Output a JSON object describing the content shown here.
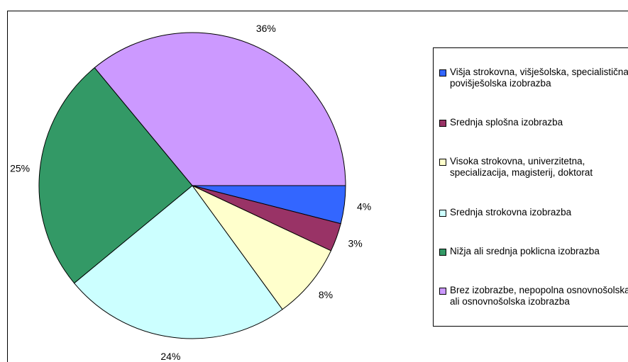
{
  "chart_data": {
    "type": "pie",
    "series": [
      {
        "name": "Višja strokovna, višješolska, specialistična povišješolska izobrazba",
        "color": "#3366ff",
        "values": [
          4
        ],
        "value_labels": [
          "4%"
        ]
      },
      {
        "name": "Srednja splošna izobrazba",
        "color": "#993366",
        "values": [
          3
        ],
        "value_labels": [
          "3%"
        ]
      },
      {
        "name": "Visoka strokovna, univerzitetna, specializacija, magisterij, doktorat",
        "color": "#ffffcc",
        "values": [
          8
        ],
        "value_labels": [
          "8%"
        ]
      },
      {
        "name": "Srednja strokovna izobrazba",
        "color": "#ccffff",
        "values": [
          24
        ],
        "value_labels": [
          "24%"
        ]
      },
      {
        "name": "Nižja ali srednja poklicna izobrazba",
        "color": "#339966",
        "values": [
          25
        ],
        "value_labels": [
          "25%"
        ]
      },
      {
        "name": "Brez izobrazbe, nepopolna osnovnošolska ali osnovnošolska izobrazba",
        "color": "#cc99ff",
        "values": [
          36
        ],
        "value_labels": [
          "36%"
        ]
      }
    ],
    "legend": "right"
  }
}
